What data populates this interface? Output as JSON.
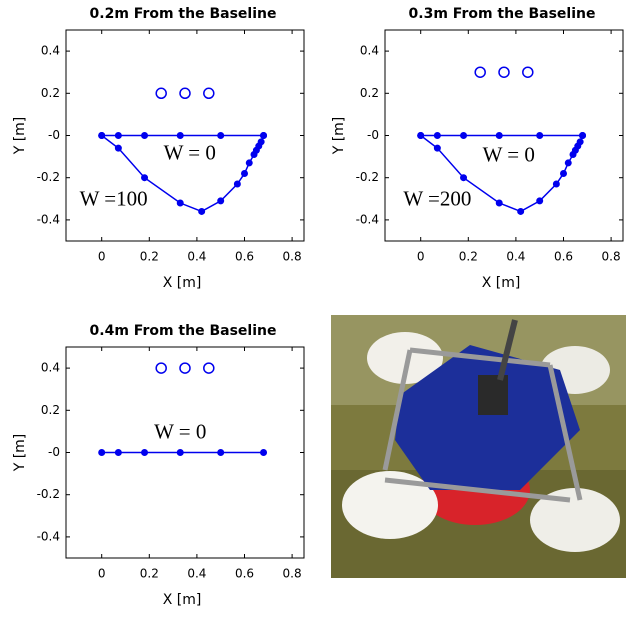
{
  "chart_data": [
    {
      "type": "line",
      "title": "0.2m From the Baseline",
      "xlabel": "X [m]",
      "ylabel": "Y [m]",
      "xlim": [
        -0.15,
        0.85
      ],
      "xticks": [
        0,
        0.2,
        0.4,
        0.6,
        0.8
      ],
      "ylim": [
        -0.5,
        0.5
      ],
      "yticks": [
        0.4,
        0.2,
        {
          "value": 0,
          "label": "-0"
        },
        -0.2,
        -0.4
      ],
      "series": [
        {
          "color": "#0000ee",
          "line": true,
          "marker": "dot",
          "x": [
            0,
            0.07,
            0.18,
            0.33,
            0.5,
            0.68
          ],
          "values": [
            0,
            0,
            0,
            0,
            0,
            0
          ]
        },
        {
          "color": "#0000ee",
          "line": true,
          "marker": "dot",
          "x": [
            0,
            0.07,
            0.18,
            0.33,
            0.42,
            0.5,
            0.57,
            0.6,
            0.62,
            0.64,
            0.65,
            0.66,
            0.67,
            0.68
          ],
          "values": [
            0,
            -0.06,
            -0.2,
            -0.32,
            -0.36,
            -0.31,
            -0.23,
            -0.18,
            -0.13,
            -0.09,
            -0.07,
            -0.05,
            -0.03,
            0
          ]
        },
        {
          "color": "#0000ee",
          "line": false,
          "marker": "ring",
          "x": [
            0.25,
            0.35,
            0.45
          ],
          "values": [
            0.2,
            0.2,
            0.2
          ]
        }
      ],
      "annotations": [
        {
          "text": "W = 0",
          "x": 0.37,
          "y": -0.09
        },
        {
          "text": "W =100",
          "x": 0.05,
          "y": -0.31
        }
      ]
    },
    {
      "type": "line",
      "title": "0.3m From the Baseline",
      "xlabel": "X [m]",
      "ylabel": "Y [m]",
      "xlim": [
        -0.15,
        0.85
      ],
      "xticks": [
        0,
        0.2,
        0.4,
        0.6,
        0.8
      ],
      "ylim": [
        -0.5,
        0.5
      ],
      "yticks": [
        0.4,
        0.2,
        {
          "value": 0,
          "label": "-0"
        },
        -0.2,
        -0.4
      ],
      "series": [
        {
          "color": "#0000ee",
          "line": true,
          "marker": "dot",
          "x": [
            0,
            0.07,
            0.18,
            0.33,
            0.5,
            0.68
          ],
          "values": [
            0,
            0,
            0,
            0,
            0,
            0
          ]
        },
        {
          "color": "#0000ee",
          "line": true,
          "marker": "dot",
          "x": [
            0,
            0.07,
            0.18,
            0.33,
            0.42,
            0.5,
            0.57,
            0.6,
            0.62,
            0.64,
            0.65,
            0.66,
            0.67,
            0.68
          ],
          "values": [
            0,
            -0.06,
            -0.2,
            -0.32,
            -0.36,
            -0.31,
            -0.23,
            -0.18,
            -0.13,
            -0.09,
            -0.07,
            -0.05,
            -0.03,
            0
          ]
        },
        {
          "color": "#0000ee",
          "line": false,
          "marker": "ring",
          "x": [
            0.25,
            0.35,
            0.45
          ],
          "values": [
            0.3,
            0.3,
            0.3
          ]
        }
      ],
      "annotations": [
        {
          "text": "W = 0",
          "x": 0.37,
          "y": -0.1
        },
        {
          "text": "W =200",
          "x": 0.07,
          "y": -0.31
        }
      ]
    },
    {
      "type": "line",
      "title": "0.4m From the Baseline",
      "xlabel": "X [m]",
      "ylabel": "Y [m]",
      "xlim": [
        -0.15,
        0.85
      ],
      "xticks": [
        0,
        0.2,
        0.4,
        0.6,
        0.8
      ],
      "ylim": [
        -0.5,
        0.5
      ],
      "yticks": [
        0.4,
        0.2,
        {
          "value": 0,
          "label": "-0"
        },
        -0.2,
        -0.4
      ],
      "series": [
        {
          "color": "#0000ee",
          "line": true,
          "marker": "dot",
          "x": [
            0,
            0.07,
            0.18,
            0.33,
            0.5,
            0.68
          ],
          "values": [
            0,
            0,
            0,
            0,
            0,
            0
          ]
        },
        {
          "color": "#0000ee",
          "line": false,
          "marker": "ring",
          "x": [
            0.25,
            0.35,
            0.45
          ],
          "values": [
            0.4,
            0.4,
            0.4
          ]
        }
      ],
      "annotations": [
        {
          "text": "W = 0",
          "x": 0.33,
          "y": 0.09
        }
      ]
    }
  ]
}
